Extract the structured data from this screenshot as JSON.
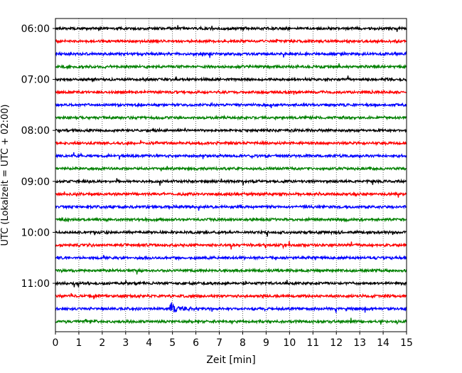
{
  "chart_data": {
    "type": "line",
    "title": "",
    "xlabel": "Zeit  [min]",
    "ylabel": "UTC (Lokalzeit = UTC + 02:00)",
    "xlim": [
      0,
      15
    ],
    "x_ticks": [
      "0",
      "1",
      "2",
      "3",
      "4",
      "5",
      "6",
      "7",
      "8",
      "9",
      "10",
      "11",
      "12",
      "13",
      "14",
      "15"
    ],
    "y_tick_labels": [
      "06:00",
      "07:00",
      "08:00",
      "09:00",
      "10:00",
      "11:00"
    ],
    "x_grid": true,
    "trace_colors": [
      "#000000",
      "#ff0000",
      "#0000ff",
      "#008000"
    ],
    "trace_start_times": [
      "06:00",
      "06:15",
      "06:30",
      "06:45",
      "07:00",
      "07:15",
      "07:30",
      "07:45",
      "08:00",
      "08:15",
      "08:30",
      "08:45",
      "09:00",
      "09:15",
      "09:30",
      "09:45",
      "10:00",
      "10:15",
      "10:30",
      "10:45",
      "11:00",
      "11:15",
      "11:30",
      "11:45"
    ],
    "notable_event": {
      "trace": "11:30",
      "start_min": 4.9,
      "end_min": 6.3,
      "description_visible": false
    }
  }
}
